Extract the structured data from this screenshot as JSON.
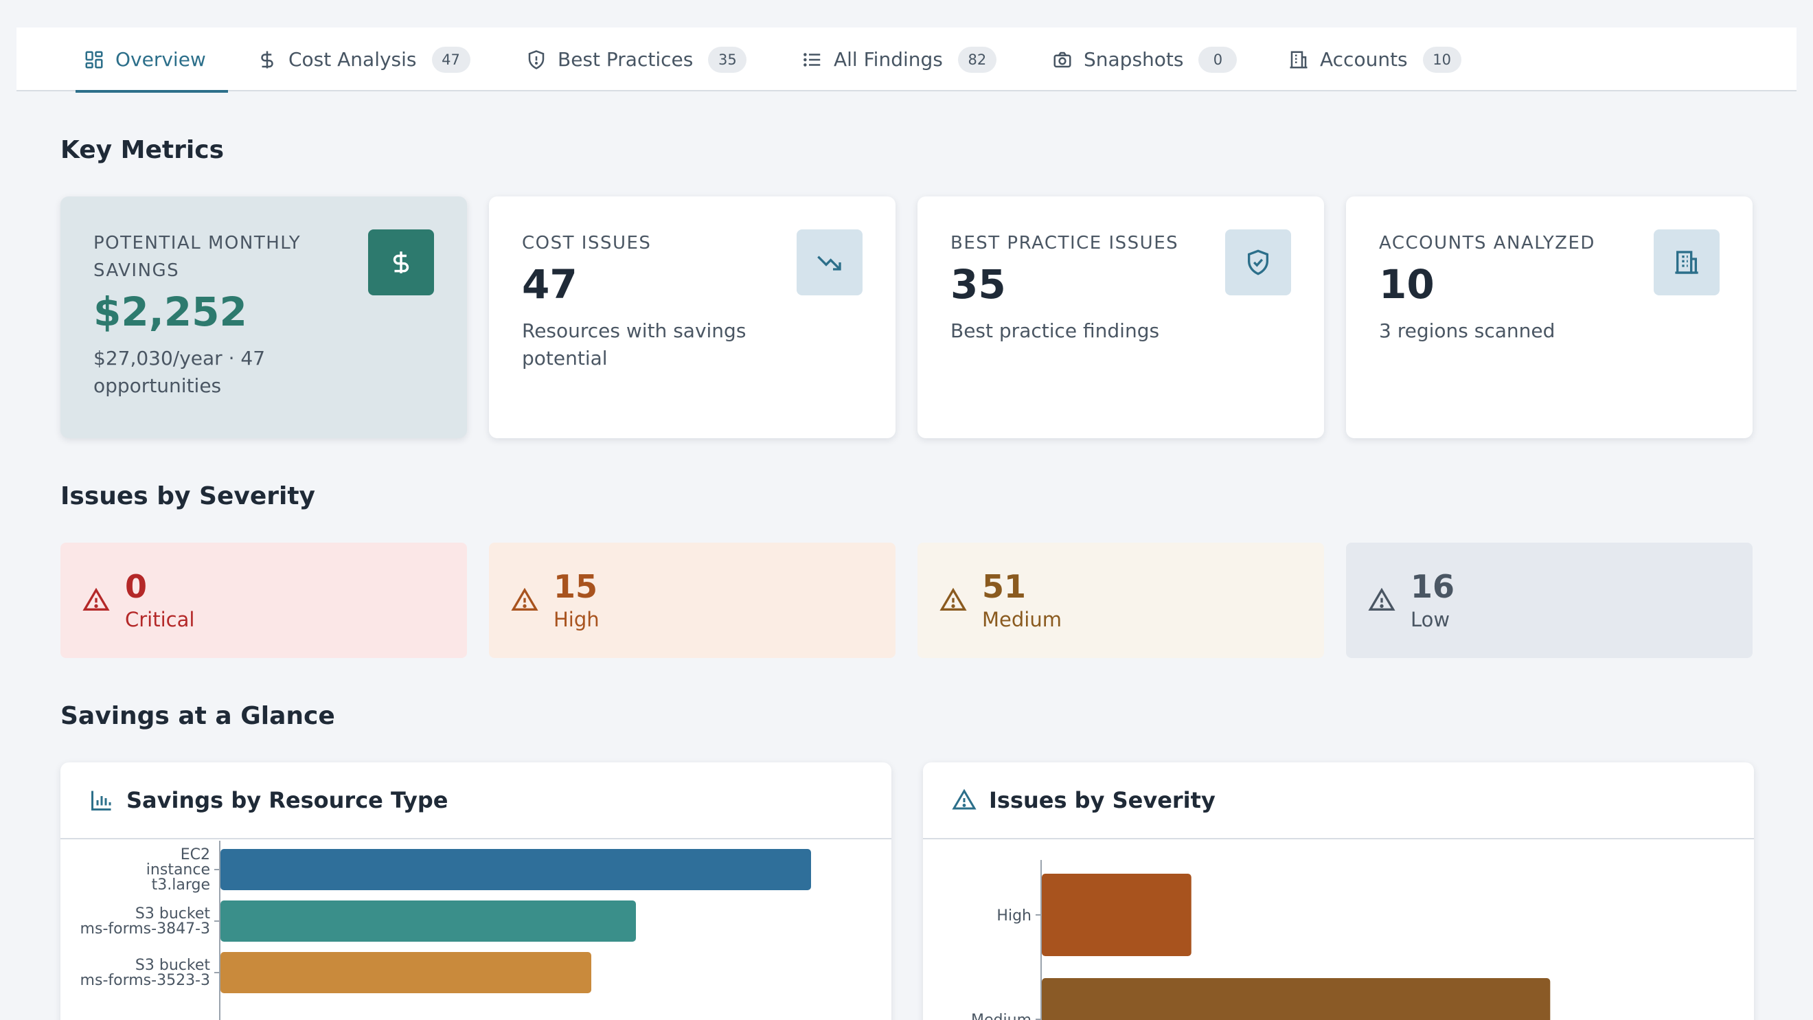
{
  "tabs": [
    {
      "label": "Overview",
      "badge": null,
      "icon": "dashboard-icon",
      "active": true
    },
    {
      "label": "Cost Analysis",
      "badge": "47",
      "icon": "dollar-icon"
    },
    {
      "label": "Best Practices",
      "badge": "35",
      "icon": "shield-icon"
    },
    {
      "label": "All Findings",
      "badge": "82",
      "icon": "list-icon"
    },
    {
      "label": "Snapshots",
      "badge": "0",
      "icon": "camera-icon"
    },
    {
      "label": "Accounts",
      "badge": "10",
      "icon": "building-icon"
    }
  ],
  "sections": {
    "key_metrics": "Key Metrics",
    "issues_by_severity": "Issues by Severity",
    "savings_glance": "Savings at a Glance"
  },
  "metrics": [
    {
      "label": "POTENTIAL MONTHLY SAVINGS",
      "value": "$2,252",
      "sub": "$27,030/year · 47 opportunities",
      "icon": "dollar-icon"
    },
    {
      "label": "COST ISSUES",
      "value": "47",
      "sub": "Resources with savings potential",
      "icon": "trending-down-icon"
    },
    {
      "label": "BEST PRACTICE ISSUES",
      "value": "35",
      "sub": "Best practice findings",
      "icon": "shield-check-icon"
    },
    {
      "label": "ACCOUNTS ANALYZED",
      "value": "10",
      "sub": "3 regions scanned",
      "icon": "building-icon"
    }
  ],
  "severity": [
    {
      "count": "0",
      "label": "Critical",
      "bg": "#fbe7e7",
      "fg": "#b42828"
    },
    {
      "count": "15",
      "label": "High",
      "bg": "#fbede4",
      "fg": "#a8531e"
    },
    {
      "count": "51",
      "label": "Medium",
      "bg": "#f9f4ec",
      "fg": "#8a5a1f"
    },
    {
      "count": "16",
      "label": "Low",
      "bg": "#e5e9ef",
      "fg": "#4a5663"
    }
  ],
  "panels": {
    "savings_title": "Savings by Resource Type",
    "severity_title": "Issues by Severity"
  },
  "chart_data": [
    {
      "type": "bar",
      "orientation": "horizontal",
      "title": "Savings by Resource Type",
      "categories": [
        [
          "EC2",
          "instance",
          "t3.large"
        ],
        [
          "S3 bucket",
          "ms-forms-3847-3"
        ],
        [
          "S3 bucket",
          "ms-forms-3523-3"
        ]
      ],
      "values": [
        860,
        605,
        540
      ],
      "colors": [
        "#2f6f9a",
        "#3a8f8a",
        "#c98a3c"
      ],
      "xlim": [
        0,
        1000
      ]
    },
    {
      "type": "bar",
      "orientation": "horizontal",
      "title": "Issues by Severity",
      "categories": [
        "High",
        "Medium"
      ],
      "values": [
        15,
        51
      ],
      "colors": [
        "#a8531e",
        "#8a5a26"
      ],
      "xlim": [
        0,
        62
      ]
    }
  ],
  "colors": {
    "accent": "#2c6f8a",
    "savings_green": "#2d7a6e"
  }
}
